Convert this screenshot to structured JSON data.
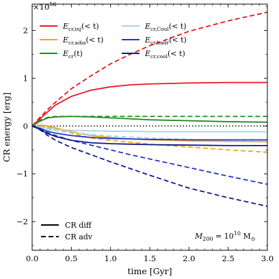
{
  "chart_data": {
    "type": "line",
    "xlabel": "time [Gyr]",
    "ylabel": "CR energy [erg]",
    "offset_label": "×10",
    "offset_exponent": "56",
    "annotation": {
      "prefix": "M",
      "sub": "200",
      "mid": " = 10",
      "sup": "10",
      "unit": " M",
      "unit_sub": "⊙"
    },
    "xlim": [
      0.0,
      3.0
    ],
    "ylim": [
      -2.6,
      2.55
    ],
    "xticks": [
      0.0,
      0.5,
      1.0,
      1.5,
      2.0,
      2.5,
      3.0
    ],
    "xtick_labels": [
      "0.0",
      "0.5",
      "1.0",
      "1.5",
      "2.0",
      "2.5",
      "3.0"
    ],
    "yticks": [
      -2,
      -1,
      0,
      1,
      2
    ],
    "ytick_labels": [
      "−2",
      "−1",
      "0",
      "1",
      "2"
    ],
    "zero_line": {
      "style": "dotted",
      "color": "#000000"
    },
    "legend_series": [
      {
        "label_main": "E",
        "label_sub": "cr,inj",
        "label_rest": "(< t)",
        "color": "#e8141c"
      },
      {
        "label_main": "E",
        "label_sub": "cr,adia",
        "label_rest": "(< t)",
        "color": "#f5a21b"
      },
      {
        "label_main": "E",
        "label_sub": "cr",
        "label_rest": "(t)",
        "color": "#1f8a1f"
      },
      {
        "label_main": "E",
        "label_sub": "cr,Coul",
        "label_rest": "(< t)",
        "color": "#a6d3e3"
      },
      {
        "label_main": "E",
        "label_sub": "cr,hadr",
        "label_rest": "(< t)",
        "color": "#2233cc"
      },
      {
        "label_main": "E",
        "label_sub": "cr,cool",
        "label_rest": "(< t)",
        "color": "#0b1a8a"
      }
    ],
    "style_legend": [
      {
        "label": "CR diff",
        "dash": "solid"
      },
      {
        "label": "CR adv",
        "dash": "dashed"
      }
    ],
    "series": [
      {
        "key": "inj_diff",
        "color": "#e8141c",
        "dash": "solid",
        "x": [
          0,
          0.1,
          0.2,
          0.3,
          0.5,
          0.75,
          1.0,
          1.25,
          1.5,
          2.0,
          2.5,
          3.0
        ],
        "y": [
          0,
          0.15,
          0.3,
          0.44,
          0.62,
          0.75,
          0.82,
          0.86,
          0.88,
          0.9,
          0.91,
          0.91
        ]
      },
      {
        "key": "inj_adv",
        "color": "#e8141c",
        "dash": "dashed",
        "x": [
          0,
          0.1,
          0.2,
          0.3,
          0.5,
          0.75,
          1.0,
          1.25,
          1.5,
          2.0,
          2.5,
          3.0
        ],
        "y": [
          0,
          0.18,
          0.35,
          0.5,
          0.78,
          1.05,
          1.3,
          1.5,
          1.68,
          1.98,
          2.2,
          2.38
        ]
      },
      {
        "key": "adia_diff",
        "color": "#f5a21b",
        "dash": "solid",
        "x": [
          0,
          0.1,
          0.2,
          0.3,
          0.5,
          0.75,
          1.0,
          1.25,
          1.5,
          2.0,
          2.5,
          3.0
        ],
        "y": [
          0,
          0.02,
          0.0,
          -0.04,
          -0.12,
          -0.2,
          -0.24,
          -0.27,
          -0.29,
          -0.31,
          -0.32,
          -0.33
        ]
      },
      {
        "key": "adia_adv",
        "color": "#f5a21b",
        "dash": "dashed",
        "x": [
          0,
          0.1,
          0.2,
          0.3,
          0.5,
          0.75,
          1.0,
          1.25,
          1.5,
          2.0,
          2.5,
          3.0
        ],
        "y": [
          0,
          0.01,
          -0.02,
          -0.06,
          -0.15,
          -0.25,
          -0.3,
          -0.34,
          -0.38,
          -0.44,
          -0.5,
          -0.55
        ]
      },
      {
        "key": "cr_diff",
        "color": "#1f8a1f",
        "dash": "solid",
        "x": [
          0,
          0.1,
          0.2,
          0.3,
          0.5,
          0.75,
          1.0,
          1.25,
          1.5,
          2.0,
          2.5,
          3.0
        ],
        "y": [
          0,
          0.1,
          0.17,
          0.19,
          0.2,
          0.19,
          0.17,
          0.15,
          0.13,
          0.11,
          0.09,
          0.08
        ]
      },
      {
        "key": "cr_adv",
        "color": "#1f8a1f",
        "dash": "dashed",
        "x": [
          0,
          0.1,
          0.2,
          0.3,
          0.5,
          0.75,
          1.0,
          1.25,
          1.5,
          2.0,
          2.5,
          3.0
        ],
        "y": [
          0,
          0.12,
          0.18,
          0.2,
          0.2,
          0.2,
          0.2,
          0.2,
          0.2,
          0.2,
          0.2,
          0.2
        ]
      },
      {
        "key": "coul_diff",
        "color": "#a6d3e3",
        "dash": "solid",
        "x": [
          0,
          0.1,
          0.2,
          0.3,
          0.5,
          0.75,
          1.0,
          1.25,
          1.5,
          2.0,
          2.5,
          3.0
        ],
        "y": [
          0,
          -0.02,
          -0.05,
          -0.07,
          -0.09,
          -0.1,
          -0.11,
          -0.11,
          -0.12,
          -0.12,
          -0.12,
          -0.12
        ]
      },
      {
        "key": "coul_adv",
        "color": "#a6d3e3",
        "dash": "dashed",
        "x": [
          0,
          0.1,
          0.2,
          0.3,
          0.5,
          0.75,
          1.0,
          1.25,
          1.5,
          2.0,
          2.5,
          3.0
        ],
        "y": [
          0,
          -0.03,
          -0.07,
          -0.1,
          -0.14,
          -0.18,
          -0.21,
          -0.23,
          -0.25,
          -0.28,
          -0.3,
          -0.32
        ]
      },
      {
        "key": "hadr_diff",
        "color": "#2233cc",
        "dash": "solid",
        "x": [
          0,
          0.1,
          0.2,
          0.3,
          0.5,
          0.75,
          1.0,
          1.25,
          1.5,
          2.0,
          2.5,
          3.0
        ],
        "y": [
          0,
          -0.05,
          -0.11,
          -0.15,
          -0.2,
          -0.24,
          -0.26,
          -0.27,
          -0.28,
          -0.29,
          -0.29,
          -0.29
        ]
      },
      {
        "key": "hadr_adv",
        "color": "#2233cc",
        "dash": "dashed",
        "x": [
          0,
          0.1,
          0.2,
          0.3,
          0.5,
          0.75,
          1.0,
          1.25,
          1.5,
          2.0,
          2.5,
          3.0
        ],
        "y": [
          0,
          -0.06,
          -0.14,
          -0.2,
          -0.3,
          -0.4,
          -0.5,
          -0.6,
          -0.69,
          -0.87,
          -1.05,
          -1.22
        ]
      },
      {
        "key": "cool_diff",
        "color": "#0b1a8a",
        "dash": "solid",
        "x": [
          0,
          0.1,
          0.2,
          0.3,
          0.5,
          0.75,
          1.0,
          1.25,
          1.5,
          2.0,
          2.5,
          3.0
        ],
        "y": [
          0,
          -0.07,
          -0.16,
          -0.22,
          -0.3,
          -0.35,
          -0.37,
          -0.38,
          -0.39,
          -0.4,
          -0.41,
          -0.41
        ]
      },
      {
        "key": "cool_adv",
        "color": "#0b1a8a",
        "dash": "dashed",
        "x": [
          0,
          0.1,
          0.2,
          0.3,
          0.5,
          0.75,
          1.0,
          1.25,
          1.5,
          2.0,
          2.5,
          3.0
        ],
        "y": [
          0,
          -0.08,
          -0.2,
          -0.3,
          -0.45,
          -0.6,
          -0.75,
          -0.89,
          -1.03,
          -1.3,
          -1.5,
          -1.68
        ]
      }
    ]
  }
}
